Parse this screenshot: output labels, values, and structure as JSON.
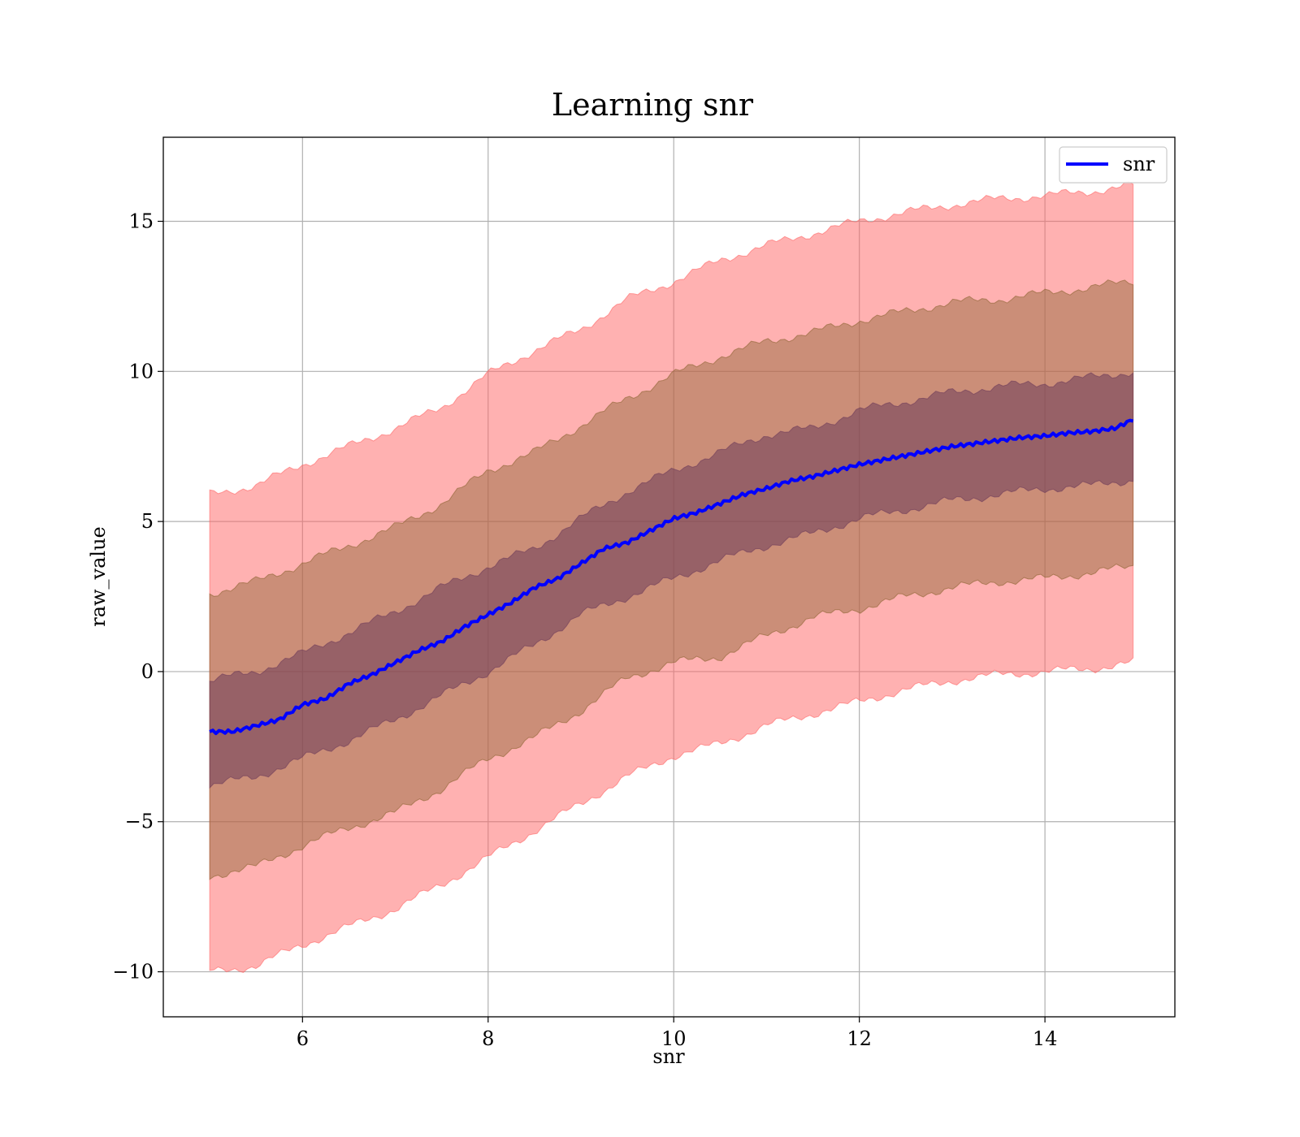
{
  "chart_data": {
    "type": "line",
    "title": "Learning snr",
    "xlabel": "snr",
    "ylabel": "raw_value",
    "xlim": [
      4.5,
      15.4
    ],
    "ylim": [
      -11.5,
      17.8
    ],
    "xticks": [
      6,
      8,
      10,
      12,
      14
    ],
    "xtick_labels": [
      "6",
      "8",
      "10",
      "12",
      "14"
    ],
    "yticks": [
      -10,
      -5,
      0,
      5,
      10,
      15
    ],
    "ytick_labels": [
      "−10",
      "−5",
      "0",
      "5",
      "10",
      "15"
    ],
    "grid": true,
    "legend_position": "top-right",
    "series": [
      {
        "name": "snr",
        "color": "#0000ff",
        "x": [
          5.0,
          5.25,
          5.5,
          5.75,
          6.0,
          6.25,
          6.5,
          6.75,
          7.0,
          7.25,
          7.5,
          7.75,
          8.0,
          8.25,
          8.5,
          8.75,
          9.0,
          9.25,
          9.5,
          9.75,
          10.0,
          10.25,
          10.5,
          10.75,
          11.0,
          11.25,
          11.5,
          11.75,
          12.0,
          12.25,
          12.5,
          12.75,
          13.0,
          13.25,
          13.5,
          13.75,
          14.0,
          14.25,
          14.5,
          14.75,
          14.95
        ],
        "y": [
          -2.0,
          -2.0,
          -1.8,
          -1.6,
          -1.1,
          -0.9,
          -0.4,
          -0.1,
          0.3,
          0.7,
          1.0,
          1.5,
          1.9,
          2.3,
          2.8,
          3.1,
          3.6,
          4.1,
          4.3,
          4.7,
          5.1,
          5.3,
          5.6,
          5.9,
          6.1,
          6.35,
          6.5,
          6.7,
          6.9,
          7.05,
          7.2,
          7.35,
          7.5,
          7.6,
          7.7,
          7.8,
          7.85,
          7.95,
          8.0,
          8.1,
          8.4
        ]
      }
    ],
    "bands": [
      {
        "name": "outer",
        "color": "#ff6464",
        "opacity": 0.5,
        "x": [
          5.0,
          5.5,
          6.0,
          6.5,
          7.0,
          7.5,
          8.0,
          8.5,
          9.0,
          9.5,
          10.0,
          10.5,
          11.0,
          11.5,
          12.0,
          12.5,
          13.0,
          13.5,
          14.0,
          14.5,
          14.95
        ],
        "upper": [
          5.9,
          6.2,
          6.9,
          7.5,
          8.1,
          8.8,
          9.9,
          10.7,
          11.4,
          12.4,
          13.0,
          13.7,
          14.2,
          14.6,
          15.0,
          15.3,
          15.55,
          15.75,
          15.85,
          16.0,
          16.2
        ],
        "lower": [
          -10.0,
          -9.8,
          -9.1,
          -8.5,
          -7.9,
          -7.1,
          -6.2,
          -5.3,
          -4.4,
          -3.5,
          -2.8,
          -2.4,
          -1.8,
          -1.4,
          -1.0,
          -0.6,
          -0.3,
          -0.1,
          0.0,
          0.1,
          0.3
        ]
      },
      {
        "name": "middle",
        "color": "#8c6432",
        "opacity": 0.45,
        "x": [
          5.0,
          5.5,
          6.0,
          6.5,
          7.0,
          7.5,
          8.0,
          8.5,
          9.0,
          9.5,
          10.0,
          10.5,
          11.0,
          11.5,
          12.0,
          12.5,
          13.0,
          13.5,
          14.0,
          14.5,
          14.95
        ],
        "upper": [
          2.6,
          3.0,
          3.6,
          4.2,
          4.8,
          5.6,
          6.7,
          7.3,
          8.2,
          9.1,
          9.9,
          10.5,
          11.0,
          11.3,
          11.7,
          12.0,
          12.3,
          12.4,
          12.6,
          12.8,
          13.0
        ],
        "lower": [
          -6.8,
          -6.5,
          -5.8,
          -5.2,
          -4.7,
          -3.9,
          -2.9,
          -2.2,
          -1.3,
          -0.2,
          0.3,
          0.5,
          1.2,
          1.8,
          2.1,
          2.5,
          2.8,
          3.0,
          3.1,
          3.3,
          3.5
        ]
      },
      {
        "name": "inner",
        "color": "#6e3c5a",
        "opacity": 0.55,
        "x": [
          5.0,
          5.5,
          6.0,
          6.5,
          7.0,
          7.5,
          8.0,
          8.5,
          9.0,
          9.5,
          10.0,
          10.5,
          11.0,
          11.5,
          12.0,
          12.5,
          13.0,
          13.5,
          14.0,
          14.5,
          14.95
        ],
        "upper": [
          -0.3,
          0.0,
          0.6,
          1.3,
          2.0,
          2.8,
          3.5,
          4.1,
          5.1,
          6.0,
          6.7,
          7.3,
          7.9,
          8.1,
          8.7,
          9.0,
          9.3,
          9.5,
          9.6,
          9.8,
          10.0
        ],
        "lower": [
          -3.8,
          -3.5,
          -2.9,
          -2.3,
          -1.6,
          -0.8,
          0.0,
          0.9,
          1.9,
          2.5,
          3.1,
          3.7,
          4.2,
          4.6,
          5.1,
          5.4,
          5.7,
          5.9,
          6.1,
          6.2,
          6.4
        ]
      }
    ]
  }
}
